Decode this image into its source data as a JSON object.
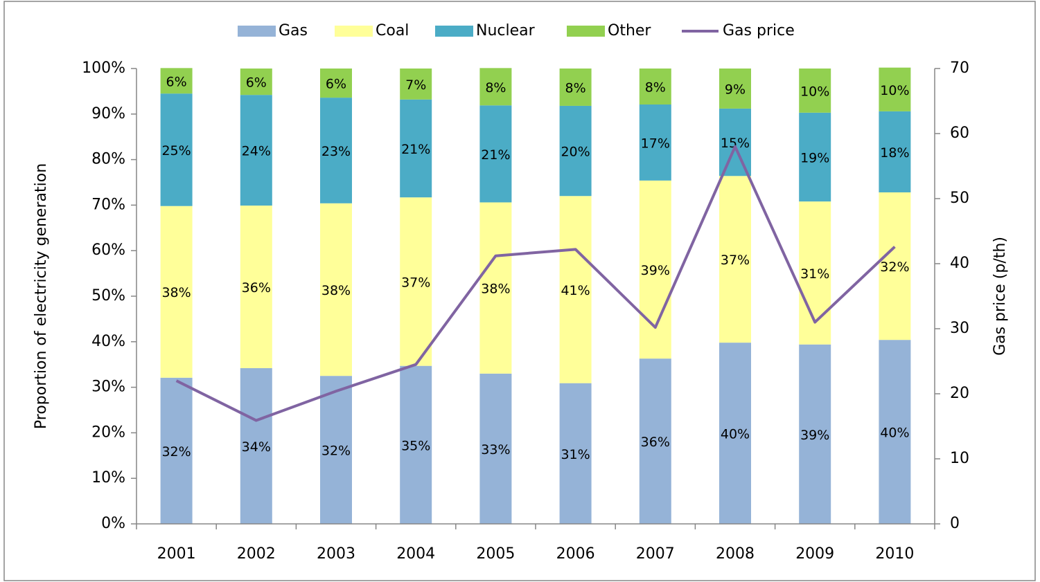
{
  "chart_data": {
    "type": "bar",
    "stacked": true,
    "categories": [
      "2001",
      "2002",
      "2003",
      "2004",
      "2005",
      "2006",
      "2007",
      "2008",
      "2009",
      "2010"
    ],
    "y_label": "Proportion of electricity generation",
    "y2_label": "Gas price (p/th)",
    "ylim": [
      0,
      100
    ],
    "yticks": [
      {
        "value": 0,
        "label": "0%"
      },
      {
        "value": 10,
        "label": "10%"
      },
      {
        "value": 20,
        "label": "20%"
      },
      {
        "value": 30,
        "label": "30%"
      },
      {
        "value": 40,
        "label": "40%"
      },
      {
        "value": 50,
        "label": "50%"
      },
      {
        "value": 60,
        "label": "60%"
      },
      {
        "value": 70,
        "label": "70%"
      },
      {
        "value": 80,
        "label": "80%"
      },
      {
        "value": 90,
        "label": "90%"
      },
      {
        "value": 100,
        "label": "100%"
      }
    ],
    "y2lim": [
      0,
      70
    ],
    "y2ticks": [
      0,
      10,
      20,
      30,
      40,
      50,
      60,
      70
    ],
    "legend": "top",
    "series": [
      {
        "name": "Gas",
        "color": "#95b3d7",
        "values": [
          32.1,
          34.2,
          32.5,
          34.7,
          33.0,
          30.9,
          36.3,
          39.8,
          39.4,
          40.4
        ],
        "value_labels": [
          "32%",
          "34%",
          "32%",
          "35%",
          "33%",
          "31%",
          "36%",
          "40%",
          "39%",
          "40%"
        ]
      },
      {
        "name": "Coal",
        "color": "#ffff99",
        "values": [
          37.7,
          35.7,
          37.9,
          37.0,
          37.6,
          41.1,
          39.1,
          36.6,
          31.4,
          32.4
        ],
        "value_labels": [
          "38%",
          "36%",
          "38%",
          "37%",
          "38%",
          "41%",
          "39%",
          "37%",
          "31%",
          "32%"
        ]
      },
      {
        "name": "Nuclear",
        "color": "#4bacc6",
        "values": [
          24.7,
          24.3,
          23.2,
          21.5,
          21.3,
          19.8,
          16.7,
          14.8,
          19.5,
          17.8
        ],
        "value_labels": [
          "25%",
          "24%",
          "23%",
          "21%",
          "21%",
          "20%",
          "17%",
          "15%",
          "19%",
          "18%"
        ]
      },
      {
        "name": "Other",
        "color": "#92d050",
        "values": [
          5.6,
          5.8,
          6.4,
          6.8,
          8.2,
          8.2,
          7.9,
          8.8,
          9.7,
          9.6
        ],
        "value_labels": [
          "6%",
          "6%",
          "6%",
          "7%",
          "8%",
          "8%",
          "8%",
          "9%",
          "10%",
          "10%"
        ]
      },
      {
        "name": "Gas price",
        "color": "#8064a2",
        "type": "line",
        "axis": "y2",
        "values": [
          22.0,
          15.9,
          20.4,
          24.5,
          41.2,
          42.2,
          30.2,
          58.0,
          31.0,
          42.6
        ]
      }
    ]
  }
}
